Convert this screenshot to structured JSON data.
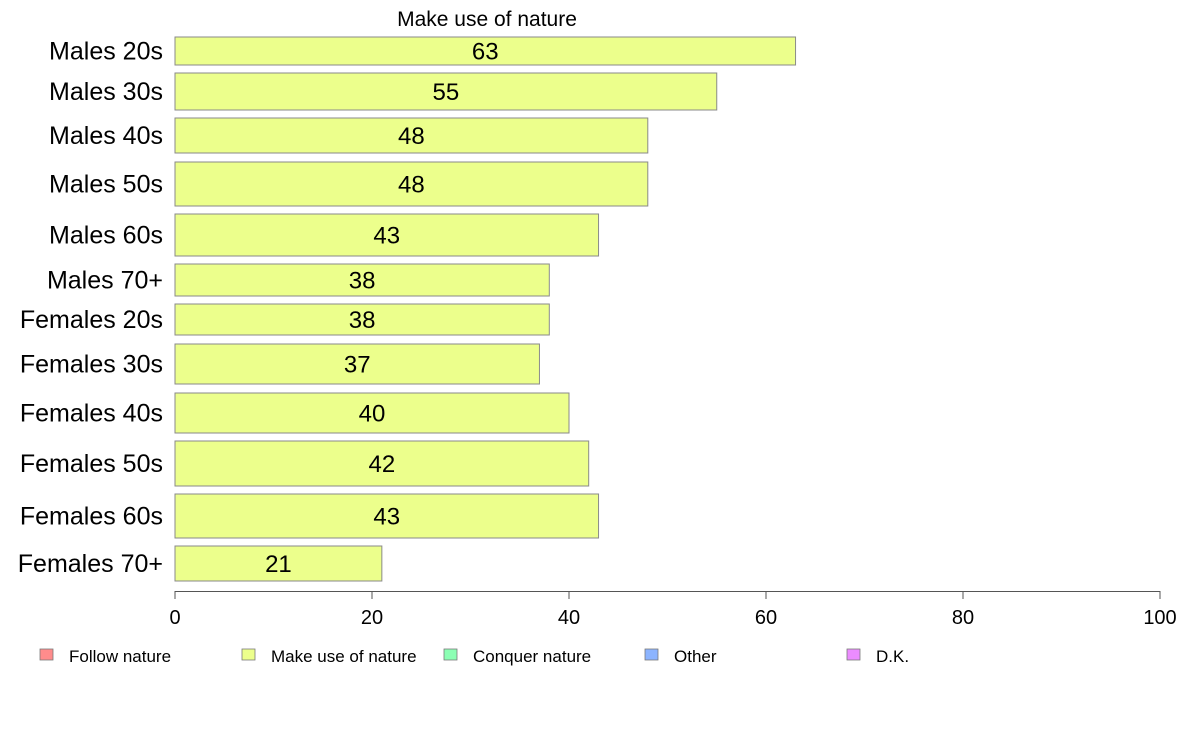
{
  "chart_data": {
    "type": "bar",
    "orientation": "horizontal",
    "title": "Make use of nature",
    "categories": [
      "Males 20s",
      "Males 30s",
      "Males 40s",
      "Males 50s",
      "Males 60s",
      "Males 70+",
      "Females 20s",
      "Females 30s",
      "Females 40s",
      "Females 50s",
      "Females 60s",
      "Females 70+"
    ],
    "values": [
      63,
      55,
      48,
      48,
      43,
      38,
      38,
      37,
      40,
      42,
      43,
      21
    ],
    "xlim": [
      0,
      100
    ],
    "xticks": [
      0,
      20,
      40,
      60,
      80,
      100
    ],
    "bar_color": "#ecff8c",
    "legend_position": "bottom",
    "legend": [
      {
        "label": "Follow nature",
        "color": "#ff8c8c"
      },
      {
        "label": "Make use of nature",
        "color": "#ecff8c"
      },
      {
        "label": "Conquer nature",
        "color": "#8cffb4"
      },
      {
        "label": "Other",
        "color": "#8cb4ff"
      },
      {
        "label": "D.K.",
        "color": "#ec8cff"
      }
    ]
  }
}
